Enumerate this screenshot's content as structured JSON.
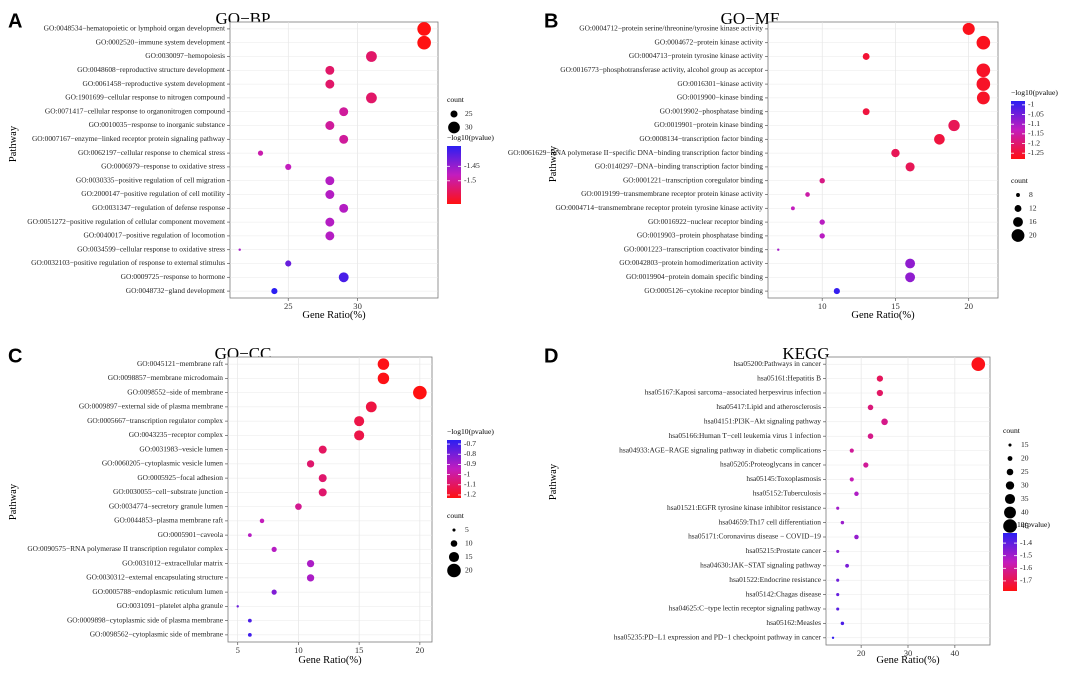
{
  "chart_data": [
    {
      "type": "scatter",
      "panel_letter": "A",
      "title": "GO−BP",
      "xlabel": "Gene Ratio(%)",
      "ylabel": "Pathway",
      "xlim": [
        20.8,
        35.8
      ],
      "xticks": [
        25,
        30
      ],
      "size_legend": {
        "title": "count",
        "entries": [
          25,
          30
        ],
        "min": 20,
        "max": 32
      },
      "color_legend": {
        "title": "−log10(pvalue)",
        "range": [
          -1.58,
          -1.38
        ],
        "ticks": [
          -1.45,
          -1.5
        ],
        "low_color": "#ff1111",
        "high_color": "#2b1ef2"
      },
      "points": [
        {
          "label": "GO:0048534−hematopoietic or lymphoid organ development",
          "x": 34.8,
          "count": 32,
          "color_value": -1.58
        },
        {
          "label": "GO:0002520−immune system development",
          "x": 34.8,
          "count": 32,
          "color_value": -1.58
        },
        {
          "label": "GO:0030097−hemopoiesis",
          "x": 31.0,
          "count": 29,
          "color_value": -1.53
        },
        {
          "label": "GO:0048608−reproductive structure development",
          "x": 28.0,
          "count": 27,
          "color_value": -1.53
        },
        {
          "label": "GO:0061458−reproductive system development",
          "x": 28.0,
          "count": 27,
          "color_value": -1.53
        },
        {
          "label": "GO:1901699−cellular response to nitrogen compound",
          "x": 31.0,
          "count": 29,
          "color_value": -1.53
        },
        {
          "label": "GO:0071417−cellular response to organonitrogen compound",
          "x": 29.0,
          "count": 27,
          "color_value": -1.5
        },
        {
          "label": "GO:0010035−response to inorganic substance",
          "x": 28.0,
          "count": 27,
          "color_value": -1.5
        },
        {
          "label": "GO:0007167−enzyme−linked receptor protein signaling pathway",
          "x": 29.0,
          "count": 27,
          "color_value": -1.5
        },
        {
          "label": "GO:0062197−cellular response to chemical stress",
          "x": 23.0,
          "count": 23,
          "color_value": -1.49
        },
        {
          "label": "GO:0006979−response to oxidative stress",
          "x": 25.0,
          "count": 24,
          "color_value": -1.48
        },
        {
          "label": "GO:0030335−positive regulation of cell migration",
          "x": 28.0,
          "count": 27,
          "color_value": -1.47
        },
        {
          "label": "GO:2000147−positive regulation of cell motility",
          "x": 28.0,
          "count": 27,
          "color_value": -1.47
        },
        {
          "label": "GO:0031347−regulation of defense response",
          "x": 29.0,
          "count": 27,
          "color_value": -1.47
        },
        {
          "label": "GO:0051272−positive regulation of cellular component movement",
          "x": 28.0,
          "count": 27,
          "color_value": -1.47
        },
        {
          "label": "GO:0040017−positive regulation of locomotion",
          "x": 28.0,
          "count": 27,
          "color_value": -1.47
        },
        {
          "label": "GO:0034599−cellular response to oxidative stress",
          "x": 21.5,
          "count": 20,
          "color_value": -1.46
        },
        {
          "label": "GO:0032103−positive regulation of response to external stimulus",
          "x": 25.0,
          "count": 24,
          "color_value": -1.42
        },
        {
          "label": "GO:0009725−response to hormone",
          "x": 29.0,
          "count": 28,
          "color_value": -1.4
        },
        {
          "label": "GO:0048732−gland development",
          "x": 24.0,
          "count": 24,
          "color_value": -1.38
        }
      ]
    },
    {
      "type": "scatter",
      "panel_letter": "B",
      "title": "GO−MF",
      "xlabel": "Gene Ratio(%)",
      "ylabel": "Pathway",
      "xlim": [
        6.3,
        22.0
      ],
      "xticks": [
        10,
        15,
        20
      ],
      "size_legend": {
        "title": "count",
        "entries": [
          8,
          12,
          16,
          20
        ],
        "min": 6,
        "max": 21
      },
      "color_legend": {
        "title": "−log10(pvalue)",
        "range": [
          -1.28,
          -0.98
        ],
        "ticks": [
          -1.0,
          -1.05,
          -1.1,
          -1.15,
          -1.2,
          -1.25
        ],
        "low_color": "#ff1111",
        "high_color": "#2b1ef2"
      },
      "points": [
        {
          "label": "GO:0004712−protein serine/threonine/tyrosine kinase activity",
          "x": 20.0,
          "count": 19,
          "color_value": -1.27
        },
        {
          "label": "GO:0004672−protein kinase activity",
          "x": 21.0,
          "count": 21,
          "color_value": -1.27
        },
        {
          "label": "GO:0004713−protein tyrosine kinase activity",
          "x": 13.0,
          "count": 12,
          "color_value": -1.25
        },
        {
          "label": "GO:0016773−phosphotransferase activity, alcohol group as acceptor",
          "x": 21.0,
          "count": 21,
          "color_value": -1.26
        },
        {
          "label": "GO:0016301−kinase activity",
          "x": 21.0,
          "count": 21,
          "color_value": -1.26
        },
        {
          "label": "GO:0019900−kinase binding",
          "x": 21.0,
          "count": 20,
          "color_value": -1.26
        },
        {
          "label": "GO:0019902−phosphatase binding",
          "x": 13.0,
          "count": 12,
          "color_value": -1.24
        },
        {
          "label": "GO:0019901−protein kinase binding",
          "x": 19.0,
          "count": 18,
          "color_value": -1.22
        },
        {
          "label": "GO:0008134−transcription factor binding",
          "x": 18.0,
          "count": 17,
          "color_value": -1.24
        },
        {
          "label": "GO:0061629−RNA polymerase II−specific DNA−binding transcription factor binding",
          "x": 15.0,
          "count": 14,
          "color_value": -1.22
        },
        {
          "label": "GO:0140297−DNA−binding transcription factor binding",
          "x": 16.0,
          "count": 15,
          "color_value": -1.22
        },
        {
          "label": "GO:0001221−transcription coregulator binding",
          "x": 10.0,
          "count": 10,
          "color_value": -1.18
        },
        {
          "label": "GO:0019199−transmembrane receptor protein kinase activity",
          "x": 9.0,
          "count": 9,
          "color_value": -1.15
        },
        {
          "label": "GO:0004714−transmembrane receptor protein tyrosine kinase activity",
          "x": 8.0,
          "count": 8,
          "color_value": -1.13
        },
        {
          "label": "GO:0016922−nuclear receptor binding",
          "x": 10.0,
          "count": 10,
          "color_value": -1.12
        },
        {
          "label": "GO:0019903−protein phosphatase binding",
          "x": 10.0,
          "count": 10,
          "color_value": -1.12
        },
        {
          "label": "GO:0001223−transcription coactivator binding",
          "x": 7.0,
          "count": 6,
          "color_value": -1.1
        },
        {
          "label": "GO:0042803−protein homodimerization activity",
          "x": 16.0,
          "count": 16,
          "color_value": -1.08
        },
        {
          "label": "GO:0019904−protein domain specific binding",
          "x": 16.0,
          "count": 16,
          "color_value": -1.08
        },
        {
          "label": "GO:0005126−cytokine receptor binding",
          "x": 11.0,
          "count": 11,
          "color_value": -0.99
        }
      ]
    },
    {
      "type": "scatter",
      "panel_letter": "C",
      "title": "GO−CC",
      "xlabel": "Gene Ratio(%)",
      "ylabel": "Pathway",
      "xlim": [
        4.2,
        21.0
      ],
      "xticks": [
        5,
        10,
        15,
        20
      ],
      "size_legend": {
        "title": "count",
        "entries": [
          5,
          10,
          15,
          20
        ],
        "min": 4,
        "max": 20
      },
      "color_legend": {
        "title": "−log10(pvalue)",
        "range": [
          -1.23,
          -0.66
        ],
        "ticks": [
          -0.7,
          -0.8,
          -0.9,
          -1.0,
          -1.1,
          -1.2
        ],
        "low_color": "#ff1111",
        "high_color": "#2b1ef2"
      },
      "points": [
        {
          "label": "GO:0045121−membrane raft",
          "x": 17.0,
          "count": 17,
          "color_value": -1.22
        },
        {
          "label": "GO:0098857−membrane microdomain",
          "x": 17.0,
          "count": 17,
          "color_value": -1.22
        },
        {
          "label": "GO:0098552−side of membrane",
          "x": 20.0,
          "count": 20,
          "color_value": -1.23
        },
        {
          "label": "GO:0009897−external side of plasma membrane",
          "x": 16.0,
          "count": 16,
          "color_value": -1.15
        },
        {
          "label": "GO:0005667−transcription regulator complex",
          "x": 15.0,
          "count": 15,
          "color_value": -1.14
        },
        {
          "label": "GO:0043235−receptor complex",
          "x": 15.0,
          "count": 15,
          "color_value": -1.14
        },
        {
          "label": "GO:0031983−vesicle lumen",
          "x": 12.0,
          "count": 12,
          "color_value": -1.1
        },
        {
          "label": "GO:0060205−cytoplasmic vesicle lumen",
          "x": 11.0,
          "count": 11,
          "color_value": -1.08
        },
        {
          "label": "GO:0005925−focal adhesion",
          "x": 12.0,
          "count": 12,
          "color_value": -1.08
        },
        {
          "label": "GO:0030055−cell−substrate junction",
          "x": 12.0,
          "count": 12,
          "color_value": -1.08
        },
        {
          "label": "GO:0034774−secretory granule lumen",
          "x": 10.0,
          "count": 10,
          "color_value": -1.02
        },
        {
          "label": "GO:0044853−plasma membrane raft",
          "x": 7.0,
          "count": 7,
          "color_value": -0.95
        },
        {
          "label": "GO:0005901−caveola",
          "x": 6.0,
          "count": 6,
          "color_value": -0.92
        },
        {
          "label": "GO:0090575−RNA polymerase II transcription regulator complex",
          "x": 8.0,
          "count": 8,
          "color_value": -0.92
        },
        {
          "label": "GO:0031012−extracellular matrix",
          "x": 11.0,
          "count": 11,
          "color_value": -0.9
        },
        {
          "label": "GO:0030312−external encapsulating structure",
          "x": 11.0,
          "count": 11,
          "color_value": -0.9
        },
        {
          "label": "GO:0005788−endoplasmic reticulum lumen",
          "x": 8.0,
          "count": 8,
          "color_value": -0.82
        },
        {
          "label": "GO:0031091−platelet alpha granule",
          "x": 5.0,
          "count": 4,
          "color_value": -0.78
        },
        {
          "label": "GO:0009898−cytoplasmic side of plasma membrane",
          "x": 6.0,
          "count": 6,
          "color_value": -0.72
        },
        {
          "label": "GO:0098562−cytoplasmic side of membrane",
          "x": 6.0,
          "count": 6,
          "color_value": -0.7
        }
      ]
    },
    {
      "type": "scatter",
      "panel_letter": "D",
      "title": "KEGG",
      "xlabel": "Gene Ratio(%)",
      "ylabel": "Pathway",
      "xlim": [
        12.5,
        47.5
      ],
      "xticks": [
        20,
        30,
        40
      ],
      "size_legend": {
        "title": "count",
        "entries": [
          15,
          20,
          25,
          30,
          35,
          40,
          45
        ],
        "min": 13,
        "max": 45
      },
      "color_legend": {
        "title": "−log10(pvalue)",
        "range": [
          -1.78,
          -1.32
        ],
        "ticks": [
          -1.4,
          -1.5,
          -1.6,
          -1.7
        ],
        "low_color": "#ff1111",
        "high_color": "#2b1ef2"
      },
      "points": [
        {
          "label": "hsa05200:Pathways in cancer",
          "x": 45.0,
          "count": 45,
          "color_value": -1.77
        },
        {
          "label": "hsa05161:Hepatitis B",
          "x": 24.0,
          "count": 24,
          "color_value": -1.68
        },
        {
          "label": "hsa05167:Kaposi sarcoma−associated herpesvirus infection",
          "x": 24.0,
          "count": 24,
          "color_value": -1.67
        },
        {
          "label": "hsa05417:Lipid and atherosclerosis",
          "x": 22.0,
          "count": 22,
          "color_value": -1.64
        },
        {
          "label": "hsa04151:PI3K−Akt signaling pathway",
          "x": 25.0,
          "count": 25,
          "color_value": -1.62
        },
        {
          "label": "hsa05166:Human T−cell leukemia virus 1 infection",
          "x": 22.0,
          "count": 22,
          "color_value": -1.62
        },
        {
          "label": "hsa04933:AGE−RAGE signaling pathway in diabetic complications",
          "x": 18.0,
          "count": 18,
          "color_value": -1.6
        },
        {
          "label": "hsa05205:Proteoglycans in cancer",
          "x": 21.0,
          "count": 21,
          "color_value": -1.6
        },
        {
          "label": "hsa05145:Toxoplasmosis",
          "x": 18.0,
          "count": 18,
          "color_value": -1.56
        },
        {
          "label": "hsa05152:Tuberculosis",
          "x": 19.0,
          "count": 19,
          "color_value": -1.52
        },
        {
          "label": "hsa01521:EGFR tyrosine kinase inhibitor resistance",
          "x": 15.0,
          "count": 15,
          "color_value": -1.5
        },
        {
          "label": "hsa04659:Th17 cell differentiation",
          "x": 16.0,
          "count": 16,
          "color_value": -1.49
        },
        {
          "label": "hsa05171:Coronavirus disease − COVID−19",
          "x": 19.0,
          "count": 19,
          "color_value": -1.48
        },
        {
          "label": "hsa05215:Prostate cancer",
          "x": 15.0,
          "count": 15,
          "color_value": -1.46
        },
        {
          "label": "hsa04630:JAK−STAT signaling pathway",
          "x": 17.0,
          "count": 17,
          "color_value": -1.44
        },
        {
          "label": "hsa01522:Endocrine resistance",
          "x": 15.0,
          "count": 15,
          "color_value": -1.42
        },
        {
          "label": "hsa05142:Chagas disease",
          "x": 15.0,
          "count": 15,
          "color_value": -1.41
        },
        {
          "label": "hsa04625:C−type lectin receptor signaling pathway",
          "x": 15.0,
          "count": 15,
          "color_value": -1.39
        },
        {
          "label": "hsa05162:Measles",
          "x": 16.0,
          "count": 16,
          "color_value": -1.37
        },
        {
          "label": "hsa05235:PD−L1 expression and PD−1 checkpoint pathway in cancer",
          "x": 14.0,
          "count": 13,
          "color_value": -1.33
        }
      ]
    }
  ]
}
